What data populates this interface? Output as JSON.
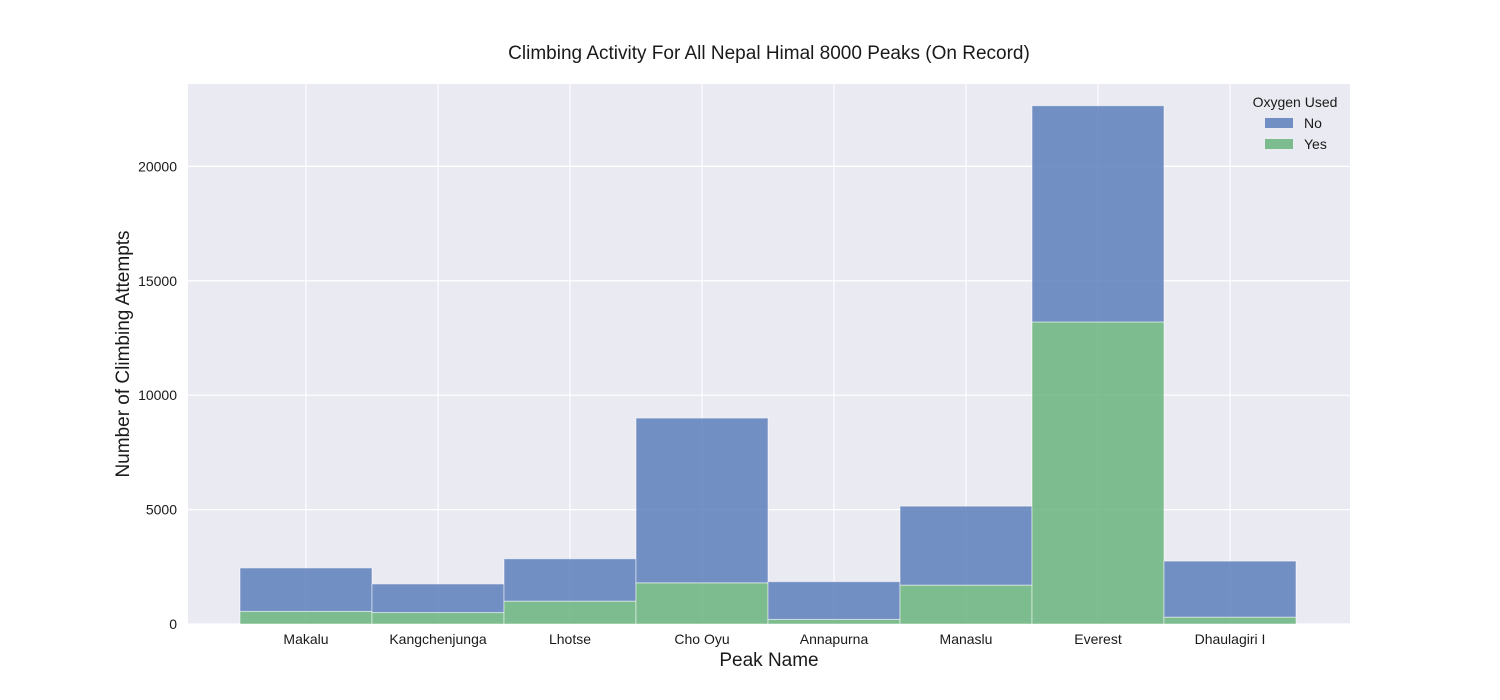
{
  "chart_data": {
    "type": "bar",
    "stacked": true,
    "title": "Climbing Activity For All Nepal Himal 8000 Peaks (On Record)",
    "xlabel": "Peak Name",
    "ylabel": "Number of Climbing Attempts",
    "categories": [
      "Makalu",
      "Kangchenjunga",
      "Lhotse",
      "Cho Oyu",
      "Annapurna",
      "Manaslu",
      "Everest",
      "Dhaulagiri I"
    ],
    "series": [
      {
        "name": "Yes",
        "color": "#6ab47c",
        "values": [
          550,
          500,
          1000,
          1800,
          200,
          1700,
          13200,
          300
        ]
      },
      {
        "name": "No",
        "color": "#5d7fbb",
        "values": [
          1900,
          1250,
          1850,
          7200,
          1650,
          3450,
          9450,
          2450
        ]
      }
    ],
    "ylim": [
      0,
      23600
    ],
    "yticks": [
      0,
      5000,
      10000,
      15000,
      20000
    ],
    "grid": true,
    "legend": {
      "title": "Oxygen Used",
      "position": "top-right",
      "entries": [
        "No",
        "Yes"
      ]
    },
    "colors": {
      "plot_background": "#eaeaf2",
      "grid": "#ffffff"
    }
  }
}
